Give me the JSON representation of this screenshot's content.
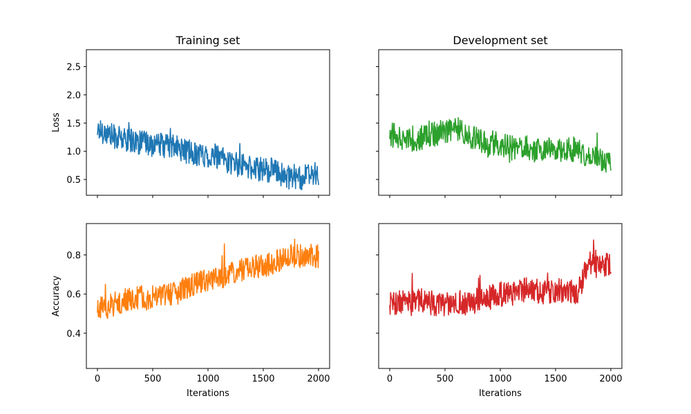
{
  "chart_data": [
    {
      "type": "line",
      "title": "Training set",
      "xlabel": "",
      "ylabel": "Loss",
      "xlim": [
        -100,
        2100
      ],
      "ylim": [
        0.22,
        2.8
      ],
      "xticks": [
        0,
        500,
        1000,
        1500,
        2000
      ],
      "yticks": [
        0.5,
        1.0,
        1.5,
        2.0,
        2.5
      ],
      "xtick_labels_visible": false,
      "ytick_labels_visible": true,
      "color": "#1f77b4",
      "series": [
        {
          "x": [
            0,
            100,
            200,
            300,
            400,
            500,
            600,
            700,
            800,
            900,
            1000,
            1100,
            1200,
            1300,
            1400,
            1500,
            1600,
            1700,
            1800,
            1900,
            2000
          ],
          "values": [
            1.4,
            1.3,
            1.22,
            1.2,
            1.15,
            1.12,
            1.1,
            1.08,
            1.0,
            0.95,
            0.92,
            0.88,
            0.8,
            0.75,
            0.7,
            0.68,
            0.66,
            0.55,
            0.52,
            0.55,
            0.6
          ]
        }
      ]
    },
    {
      "type": "line",
      "title": "Development set",
      "xlabel": "",
      "ylabel": "",
      "xlim": [
        -100,
        2100
      ],
      "ylim": [
        0.22,
        2.8
      ],
      "xticks": [
        0,
        500,
        1000,
        1500,
        2000
      ],
      "yticks": [
        0.5,
        1.0,
        1.5,
        2.0,
        2.5
      ],
      "xtick_labels_visible": false,
      "ytick_labels_visible": false,
      "color": "#2ca02c",
      "series": [
        {
          "x": [
            0,
            100,
            200,
            300,
            400,
            500,
            600,
            700,
            800,
            900,
            1000,
            1100,
            1200,
            1300,
            1400,
            1500,
            1600,
            1700,
            1800,
            1900,
            2000
          ],
          "values": [
            1.3,
            1.25,
            1.2,
            1.25,
            1.3,
            1.35,
            1.4,
            1.3,
            1.2,
            1.1,
            1.15,
            1.05,
            1.1,
            1.0,
            1.05,
            1.0,
            1.05,
            1.0,
            0.9,
            0.85,
            0.8
          ]
        }
      ]
    },
    {
      "type": "line",
      "title": "",
      "xlabel": "Iterations",
      "ylabel": "Accuracy",
      "xlim": [
        -100,
        2100
      ],
      "ylim": [
        0.22,
        0.96
      ],
      "xticks": [
        0,
        500,
        1000,
        1500,
        2000
      ],
      "yticks": [
        0.4,
        0.6,
        0.8
      ],
      "xtick_labels_visible": true,
      "ytick_labels_visible": true,
      "color": "#ff7f0e",
      "series": [
        {
          "x": [
            0,
            100,
            200,
            300,
            400,
            500,
            600,
            700,
            800,
            900,
            1000,
            1100,
            1200,
            1300,
            1400,
            1500,
            1600,
            1700,
            1800,
            1900,
            2000
          ],
          "values": [
            0.52,
            0.54,
            0.56,
            0.57,
            0.58,
            0.58,
            0.59,
            0.6,
            0.63,
            0.65,
            0.68,
            0.69,
            0.7,
            0.72,
            0.74,
            0.75,
            0.76,
            0.8,
            0.79,
            0.8,
            0.79
          ]
        }
      ]
    },
    {
      "type": "line",
      "title": "",
      "xlabel": "Iterations",
      "ylabel": "",
      "xlim": [
        -100,
        2100
      ],
      "ylim": [
        0.22,
        0.96
      ],
      "xticks": [
        0,
        500,
        1000,
        1500,
        2000
      ],
      "yticks": [
        0.4,
        0.6,
        0.8
      ],
      "xtick_labels_visible": true,
      "ytick_labels_visible": false,
      "color": "#d62728",
      "series": [
        {
          "x": [
            0,
            100,
            200,
            300,
            400,
            500,
            600,
            700,
            800,
            900,
            1000,
            1100,
            1200,
            1300,
            1400,
            1500,
            1600,
            1700,
            1800,
            1900,
            2000
          ],
          "values": [
            0.55,
            0.56,
            0.55,
            0.57,
            0.55,
            0.55,
            0.56,
            0.55,
            0.57,
            0.58,
            0.6,
            0.6,
            0.62,
            0.62,
            0.61,
            0.62,
            0.62,
            0.6,
            0.76,
            0.74,
            0.75
          ]
        }
      ]
    }
  ]
}
